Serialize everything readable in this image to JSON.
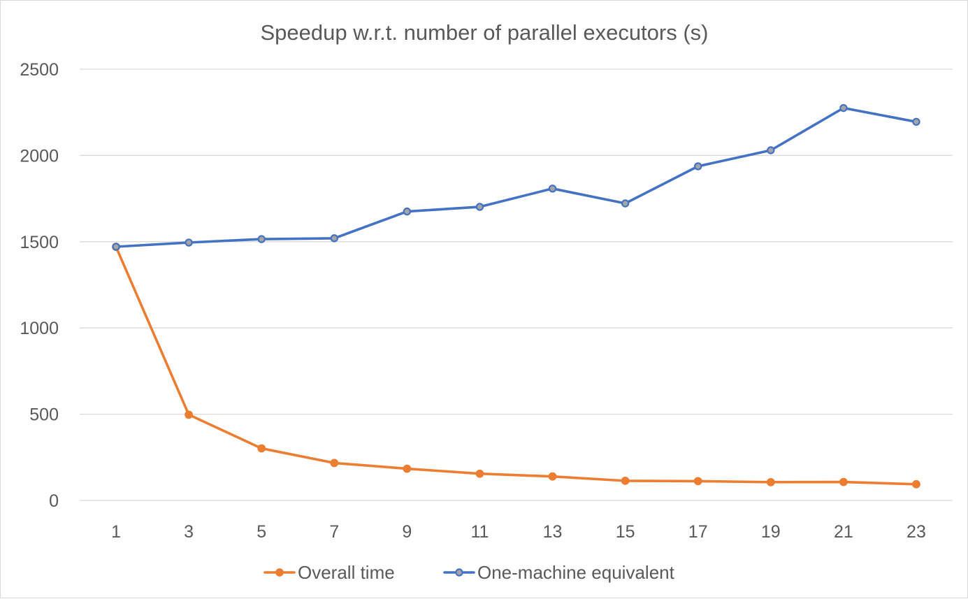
{
  "chart_data": {
    "type": "line",
    "title": "Speedup w.r.t. number of parallel executors (s)",
    "xlabel": "",
    "ylabel": "",
    "categories": [
      "1",
      "3",
      "5",
      "7",
      "9",
      "11",
      "13",
      "15",
      "17",
      "19",
      "21",
      "23"
    ],
    "ylim": [
      0,
      2500
    ],
    "yticks": [
      0,
      500,
      1000,
      1500,
      2000,
      2500
    ],
    "grid": true,
    "legend_position": "bottom",
    "series": [
      {
        "name": "Overall time",
        "color": "#ED7D31",
        "marker_fill": "#ED7D31",
        "values": [
          1470,
          497,
          302,
          217,
          184,
          155,
          139,
          114,
          112,
          106,
          107,
          94
        ]
      },
      {
        "name": "One-machine equivalent",
        "color": "#4472C4",
        "marker_fill": "#A5A5A5",
        "values": [
          1471,
          1495,
          1515,
          1520,
          1675,
          1702,
          1808,
          1722,
          1937,
          2030,
          2275,
          2195
        ]
      }
    ]
  }
}
